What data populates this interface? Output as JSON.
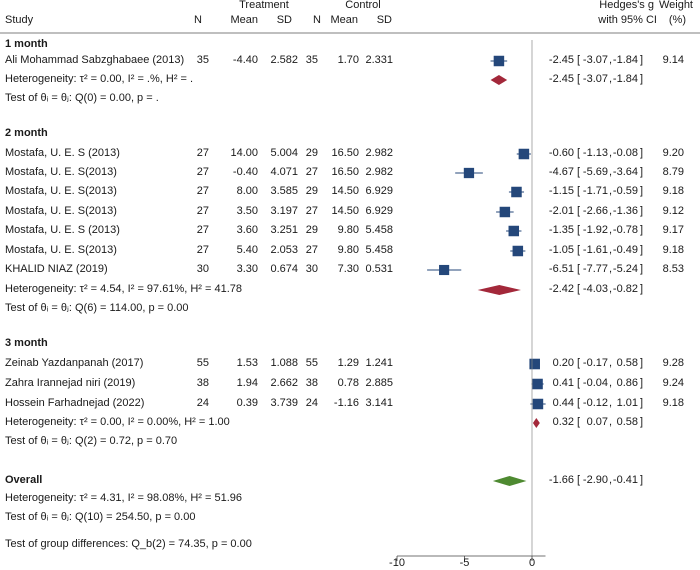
{
  "headers": {
    "study": "Study",
    "treatment": "Treatment",
    "control": "Control",
    "n": "N",
    "mean": "Mean",
    "sd": "SD",
    "effect": "Hedges's g",
    "effect_ci": "with 95% CI",
    "weight": "Weight",
    "weight_unit": "(%)"
  },
  "groups": [
    {
      "label": "1 month",
      "rows": [
        {
          "study": "Ali Mohammad Sabzghabaee (2013)",
          "tn": "35",
          "tmean": "-4.40",
          "tsd": "2.582",
          "cn": "35",
          "cmean": "1.70",
          "csd": "2.331",
          "g": "-2.45",
          "lo": "-3.07",
          "hi": "-1.84",
          "weight": "9.14"
        }
      ],
      "heterogeneity": "Heterogeneity: τ² = 0.00, I² = .%, H² = .",
      "subtotal": {
        "g": "-2.45",
        "lo": "-3.07",
        "hi": "-1.84"
      },
      "test": "Test of θᵢ = θⱼ: Q(0) = 0.00, p = ."
    },
    {
      "label": "2 month",
      "rows": [
        {
          "study": "Mostafa, U. E. S (2013)",
          "tn": "27",
          "tmean": "14.00",
          "tsd": "5.004",
          "cn": "29",
          "cmean": "16.50",
          "csd": "2.982",
          "g": "-0.60",
          "lo": "-1.13",
          "hi": "-0.08",
          "weight": "9.20"
        },
        {
          "study": "Mostafa, U. E. S(2013)",
          "tn": "27",
          "tmean": "-0.40",
          "tsd": "4.071",
          "cn": "27",
          "cmean": "16.50",
          "csd": "2.982",
          "g": "-4.67",
          "lo": "-5.69",
          "hi": "-3.64",
          "weight": "8.79"
        },
        {
          "study": "Mostafa, U. E. S(2013)",
          "tn": "27",
          "tmean": "8.00",
          "tsd": "3.585",
          "cn": "29",
          "cmean": "14.50",
          "csd": "6.929",
          "g": "-1.15",
          "lo": "-1.71",
          "hi": "-0.59",
          "weight": "9.18"
        },
        {
          "study": "Mostafa, U. E. S(2013)",
          "tn": "27",
          "tmean": "3.50",
          "tsd": "3.197",
          "cn": "27",
          "cmean": "14.50",
          "csd": "6.929",
          "g": "-2.01",
          "lo": "-2.66",
          "hi": "-1.36",
          "weight": "9.12"
        },
        {
          "study": "Mostafa, U. E. S (2013)",
          "tn": "27",
          "tmean": "3.60",
          "tsd": "3.251",
          "cn": "29",
          "cmean": "9.80",
          "csd": "5.458",
          "g": "-1.35",
          "lo": "-1.92",
          "hi": "-0.78",
          "weight": "9.17"
        },
        {
          "study": "Mostafa, U. E. S(2013)",
          "tn": "27",
          "tmean": "5.40",
          "tsd": "2.053",
          "cn": "27",
          "cmean": "9.80",
          "csd": "5.458",
          "g": "-1.05",
          "lo": "-1.61",
          "hi": "-0.49",
          "weight": "9.18"
        },
        {
          "study": "KHALID NIAZ (2019)",
          "tn": "30",
          "tmean": "3.30",
          "tsd": "0.674",
          "cn": "30",
          "cmean": "7.30",
          "csd": "0.531",
          "g": "-6.51",
          "lo": "-7.77",
          "hi": "-5.24",
          "weight": "8.53"
        }
      ],
      "heterogeneity": "Heterogeneity: τ² = 4.54, I² = 97.61%, H² = 41.78",
      "subtotal": {
        "g": "-2.42",
        "lo": "-4.03",
        "hi": "-0.82"
      },
      "test": "Test of θᵢ = θⱼ: Q(6) = 114.00, p = 0.00"
    },
    {
      "label": "3 month",
      "rows": [
        {
          "study": "Zeinab Yazdanpanah (2017)",
          "tn": "55",
          "tmean": "1.53",
          "tsd": "1.088",
          "cn": "55",
          "cmean": "1.29",
          "csd": "1.241",
          "g": "0.20",
          "lo": "-0.17",
          "hi": "0.58",
          "weight": "9.28"
        },
        {
          "study": "Zahra Irannejad niri (2019)",
          "tn": "38",
          "tmean": "1.94",
          "tsd": "2.662",
          "cn": "38",
          "cmean": "0.78",
          "csd": "2.885",
          "g": "0.41",
          "lo": "-0.04",
          "hi": "0.86",
          "weight": "9.24"
        },
        {
          "study": "Hossein Farhadnejad (2022)",
          "tn": "24",
          "tmean": "0.39",
          "tsd": "3.739",
          "cn": "24",
          "cmean": "-1.16",
          "csd": "3.141",
          "g": "0.44",
          "lo": "-0.12",
          "hi": "1.01",
          "weight": "9.18"
        }
      ],
      "heterogeneity": "Heterogeneity: τ² = 0.00, I² = 0.00%, H² = 1.00",
      "subtotal": {
        "g": "0.32",
        "lo": "0.07",
        "hi": "0.58"
      },
      "test": "Test of θᵢ = θⱼ: Q(2) = 0.72, p = 0.70"
    }
  ],
  "overall": {
    "label": "Overall",
    "g": "-1.66",
    "lo": "-2.90",
    "hi": "-0.41",
    "heterogeneity": "Heterogeneity: τ² = 4.31, I² = 98.08%, H² = 51.96",
    "test": "Test of θᵢ = θⱼ: Q(10) = 254.50, p = 0.00"
  },
  "group_test": "Test of group differences: Q_b(2) = 74.35, p = 0.00",
  "colors": {
    "square": "#24477a",
    "subtotal_diamond": "#a3283a",
    "overall_diamond": "#4e8a31",
    "text": "#1a1a1a"
  },
  "chart_data": {
    "type": "forest",
    "xlim": [
      -10,
      1
    ],
    "xticks": [
      -10,
      -5,
      0
    ],
    "xtick_labels": [
      "-10",
      "-5",
      "0"
    ],
    "effect_measure": "Hedges's g with 95% CI",
    "null_line": 0
  }
}
